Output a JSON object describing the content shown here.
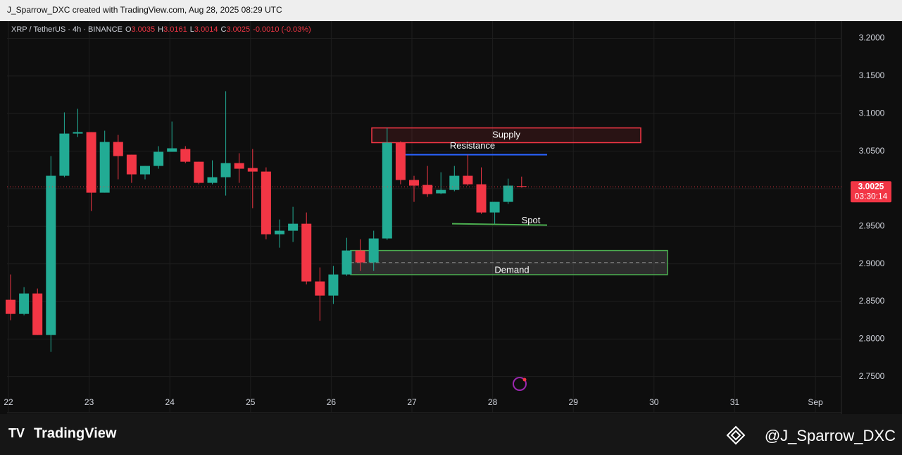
{
  "header": {
    "credit": "J_Sparrow_DXC created with TradingView.com, Aug 28, 2025 08:29 UTC",
    "symbol": "XRP / TetherUS · 4h · BINANCE",
    "ohlc": [
      {
        "key": "O",
        "value": "3.0035"
      },
      {
        "key": "H",
        "value": "3.0161"
      },
      {
        "key": "L",
        "value": "3.0014"
      },
      {
        "key": "C",
        "value": "3.0025"
      }
    ],
    "change": "-0.0010 (-0.03%)"
  },
  "footer": {
    "brand": "TradingView",
    "author": "@J_Sparrow_DXC"
  },
  "chart_data": {
    "type": "candlestick",
    "up_color": "#22ab94",
    "down_color": "#f23645",
    "grid": true,
    "categories": [
      "22",
      null,
      null,
      null,
      null,
      null,
      "23",
      null,
      null,
      null,
      null,
      null,
      "24",
      null,
      null,
      null,
      null,
      null,
      "25",
      null,
      null,
      null,
      null,
      null,
      "26",
      null,
      null,
      null,
      null,
      null,
      "27",
      null,
      null,
      null,
      null,
      null,
      "28",
      null,
      null,
      null,
      null,
      null,
      "29",
      null,
      null,
      null,
      null,
      null,
      "30",
      null,
      null,
      null,
      null,
      null,
      "31",
      null,
      null,
      null,
      null,
      null,
      "Sep",
      null,
      null
    ],
    "open": [
      2.8522,
      2.8334,
      2.8606,
      2.8053,
      3.0172,
      3.0734,
      3.0753,
      2.9947,
      3.0622,
      3.0453,
      3.0191,
      3.0303,
      3.0491,
      3.0528,
      3.0359,
      3.0078,
      3.0153,
      3.0341,
      3.0275,
      3.0228,
      2.9394,
      2.9441,
      2.9534,
      2.8766,
      2.8578,
      2.8859,
      2.9178,
      2.9019,
      2.9338,
      3.0613,
      3.0116,
      3.005,
      2.9938,
      2.9984,
      3.0172,
      3.0059,
      2.9684,
      2.9825,
      3.0035,
      null,
      null,
      null,
      null,
      null,
      null,
      null,
      null,
      null,
      null,
      null,
      null,
      null,
      null,
      null,
      null,
      null,
      null,
      null,
      null,
      null,
      null,
      null,
      null
    ],
    "high": [
      2.8859,
      2.869,
      2.8672,
      3.0434,
      3.1016,
      3.1063,
      3.0753,
      3.0772,
      3.0716,
      3.0453,
      3.0303,
      3.0566,
      3.0894,
      3.0566,
      3.0359,
      3.0378,
      3.1297,
      3.0472,
      3.0528,
      3.0284,
      2.9591,
      2.9759,
      2.9684,
      2.8953,
      2.8972,
      2.9347,
      2.9328,
      2.9441,
      3.0809,
      3.0631,
      3.0172,
      3.0303,
      3.0219,
      3.0303,
      3.0453,
      3.0284,
      2.9825,
      3.0134,
      3.0161,
      null,
      null,
      null,
      null,
      null,
      null,
      null,
      null,
      null,
      null,
      null,
      null,
      null,
      null,
      null,
      null,
      null,
      null,
      null,
      null,
      null,
      null,
      null,
      null
    ],
    "low": [
      2.825,
      2.8316,
      2.8053,
      2.7828,
      3.0153,
      3.0688,
      2.9703,
      2.9947,
      3.0125,
      3.0078,
      3.0125,
      3.0266,
      3.0491,
      3.0341,
      3.0059,
      3.0059,
      2.9909,
      3.0078,
      2.9741,
      2.9328,
      2.9216,
      2.9291,
      2.8728,
      2.8241,
      2.8466,
      2.8841,
      2.8906,
      2.8906,
      2.9319,
      3.0059,
      2.9825,
      2.9891,
      2.9928,
      2.9966,
      3.0041,
      2.9666,
      2.9534,
      2.9797,
      3.0014,
      null,
      null,
      null,
      null,
      null,
      null,
      null,
      null,
      null,
      null,
      null,
      null,
      null,
      null,
      null,
      null,
      null,
      null,
      null,
      null,
      null,
      null,
      null,
      null
    ],
    "close": [
      2.8334,
      2.8606,
      2.8053,
      3.0172,
      3.0734,
      3.0753,
      2.9947,
      3.0622,
      3.0434,
      3.0191,
      3.0303,
      3.0491,
      3.0538,
      3.0359,
      3.0078,
      3.0153,
      3.0341,
      3.0266,
      3.0228,
      2.9394,
      2.9441,
      2.9534,
      2.8766,
      2.8578,
      2.8859,
      2.9178,
      2.9019,
      2.9338,
      3.0613,
      3.0116,
      3.0041,
      2.9928,
      2.9984,
      3.0172,
      3.0059,
      2.9684,
      2.9825,
      3.0041,
      3.0025,
      null,
      null,
      null,
      null,
      null,
      null,
      null,
      null,
      null,
      null,
      null,
      null,
      null,
      null,
      null,
      null,
      null,
      null,
      null,
      null,
      null,
      null,
      null,
      null
    ],
    "ylim": [
      2.73,
      3.223
    ],
    "yticks": [
      {
        "value": 2.75,
        "label": "2.7500"
      },
      {
        "value": 2.8,
        "label": "2.8000"
      },
      {
        "value": 2.85,
        "label": "2.8500"
      },
      {
        "value": 2.9,
        "label": "2.9000"
      },
      {
        "value": 2.95,
        "label": "2.9500"
      },
      {
        "value": 3.0,
        "label": "3.0000"
      },
      {
        "value": 3.05,
        "label": "3.0500"
      },
      {
        "value": 3.1,
        "label": "3.1000"
      },
      {
        "value": 3.15,
        "label": "3.1500"
      },
      {
        "value": 3.2,
        "label": "3.2000"
      }
    ],
    "last_price": 3.0025,
    "countdown": "03:30:14",
    "annotations": {
      "supply": {
        "text": "Supply",
        "low": 3.0613,
        "high": 3.0809
      },
      "resistance": {
        "text": "Resistance",
        "value": 3.0453
      },
      "spot": {
        "text": "Spot",
        "value": 2.9534
      },
      "demand": {
        "text": "Demand",
        "low": 2.8856,
        "high": 2.9178
      }
    }
  }
}
